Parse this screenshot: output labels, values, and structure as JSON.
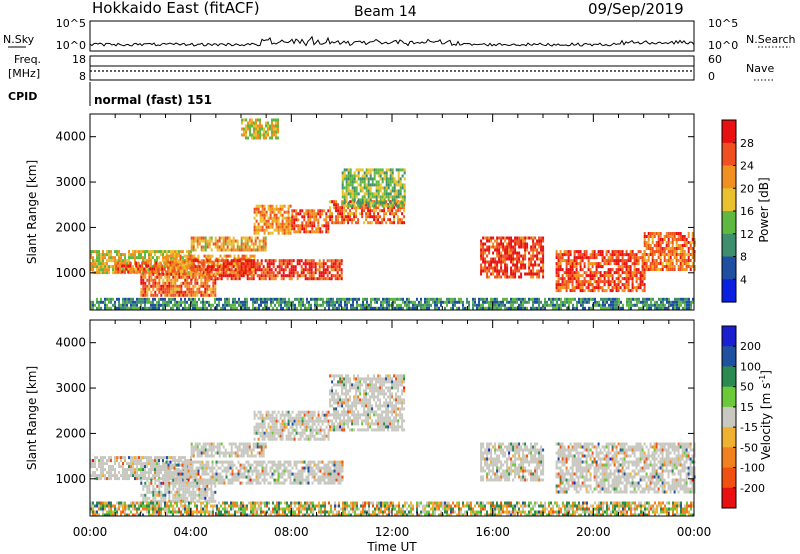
{
  "header": {
    "title": "Hokkaido East (fitACF)",
    "beam": "Beam 14",
    "date": "09/Sep/2019"
  },
  "top_panels": {
    "nsky_label": "N.Sky",
    "nsky_ticks": [
      "10^5",
      "10^0"
    ],
    "nsearch_label": "N.Search",
    "nsearch_ticks": [
      "10^5",
      "10^0"
    ],
    "freq_label_1": "Freq.",
    "freq_label_2": "[MHz]",
    "freq_ticks": [
      "18",
      "8"
    ],
    "nave_label": "Nave",
    "nave_ticks": [
      "60",
      "0"
    ],
    "cpid_label": "CPID",
    "cpid_value": "normal (fast) 151"
  },
  "colors": {
    "power_scale": [
      "#0a1fe0",
      "#1f4fa0",
      "#3f8f6f",
      "#5fb83f",
      "#e8c030",
      "#f09020",
      "#f05020",
      "#e81010"
    ],
    "velocity_scale": [
      "#1a1fd0",
      "#2050a0",
      "#2a8a50",
      "#6cc93a",
      "#c8c8c0",
      "#f0b030",
      "#f08020",
      "#f05010",
      "#e81010"
    ],
    "ground_scatter": "#c8c8c0"
  },
  "chart_data": [
    {
      "type": "heatmap",
      "panel": "power",
      "ylabel": "Slant Range [km]",
      "xlabel": "Time UT",
      "x_ticks": [
        "00:00",
        "04:00",
        "08:00",
        "12:00",
        "16:00",
        "20:00",
        "00:00"
      ],
      "x_range_hours": [
        0,
        24
      ],
      "y_range_km": [
        180,
        4500
      ],
      "y_ticks": [
        1000,
        2000,
        3000,
        4000
      ],
      "colorbar_label": "Power [dB]",
      "colorbar_ticks": [
        "28",
        "24",
        "20",
        "16",
        "12",
        "8",
        "4"
      ],
      "colorbar_range": [
        0,
        32
      ],
      "regions": [
        {
          "t": [
            0.0,
            4.0
          ],
          "r": [
            1000,
            1500
          ],
          "value": 18
        },
        {
          "t": [
            1.0,
            3.5
          ],
          "r": [
            1050,
            1250
          ],
          "value": 26
        },
        {
          "t": [
            3.0,
            6.5
          ],
          "r": [
            1000,
            1400
          ],
          "value": 22
        },
        {
          "t": [
            4.0,
            10.0
          ],
          "r": [
            900,
            1300
          ],
          "value": 28
        },
        {
          "t": [
            2.0,
            5.0
          ],
          "r": [
            500,
            1000
          ],
          "value": 24
        },
        {
          "t": [
            4.0,
            7.0
          ],
          "r": [
            1500,
            1800
          ],
          "value": 21
        },
        {
          "t": [
            6.5,
            8.0
          ],
          "r": [
            1900,
            2500
          ],
          "value": 22
        },
        {
          "t": [
            8.0,
            9.5
          ],
          "r": [
            1900,
            2400
          ],
          "value": 26
        },
        {
          "t": [
            9.5,
            12.5
          ],
          "r": [
            2100,
            2600
          ],
          "value": 25
        },
        {
          "t": [
            10.0,
            12.5
          ],
          "r": [
            2500,
            3300
          ],
          "value": 14
        },
        {
          "t": [
            6.0,
            7.5
          ],
          "r": [
            4000,
            4400
          ],
          "value": 18
        },
        {
          "t": [
            15.5,
            18.0
          ],
          "r": [
            900,
            1800
          ],
          "value": 28
        },
        {
          "t": [
            18.5,
            22.0
          ],
          "r": [
            600,
            1500
          ],
          "value": 27
        },
        {
          "t": [
            22.0,
            24.0
          ],
          "r": [
            1100,
            1900
          ],
          "value": 24
        },
        {
          "t": [
            0.0,
            24.0
          ],
          "r": [
            200,
            450
          ],
          "value": 10
        }
      ]
    },
    {
      "type": "heatmap",
      "panel": "velocity",
      "ylabel": "Slant Range [km]",
      "xlabel": "Time UT",
      "x_ticks": [
        "00:00",
        "04:00",
        "08:00",
        "12:00",
        "16:00",
        "20:00",
        "00:00"
      ],
      "x_range_hours": [
        0,
        24
      ],
      "y_range_km": [
        180,
        4500
      ],
      "y_ticks": [
        1000,
        2000,
        3000,
        4000
      ],
      "colorbar_label": "Velocity [m s",
      "colorbar_label_sup": "-1",
      "colorbar_label_end": "]",
      "colorbar_ticks": [
        "200",
        "100",
        "50",
        "15",
        "-15",
        "-50",
        "-100",
        "-200"
      ],
      "colorbar_range": [
        -250,
        250
      ],
      "regions": [
        {
          "t": [
            0.0,
            4.0
          ],
          "r": [
            1000,
            1500
          ],
          "value": 0
        },
        {
          "t": [
            3.0,
            10.0
          ],
          "r": [
            900,
            1400
          ],
          "value": 0
        },
        {
          "t": [
            2.0,
            5.0
          ],
          "r": [
            500,
            1000
          ],
          "value": 0
        },
        {
          "t": [
            4.0,
            7.0
          ],
          "r": [
            1500,
            1800
          ],
          "value": 0
        },
        {
          "t": [
            6.5,
            9.5
          ],
          "r": [
            1900,
            2500
          ],
          "value": 0
        },
        {
          "t": [
            9.5,
            12.5
          ],
          "r": [
            2100,
            3300
          ],
          "value": 0
        },
        {
          "t": [
            15.5,
            18.0
          ],
          "r": [
            1000,
            1800
          ],
          "value": 0
        },
        {
          "t": [
            18.5,
            24.0
          ],
          "r": [
            700,
            1800
          ],
          "value": 0
        },
        {
          "t": [
            0.0,
            24.0
          ],
          "r": [
            200,
            500
          ],
          "value": 60
        }
      ]
    }
  ]
}
